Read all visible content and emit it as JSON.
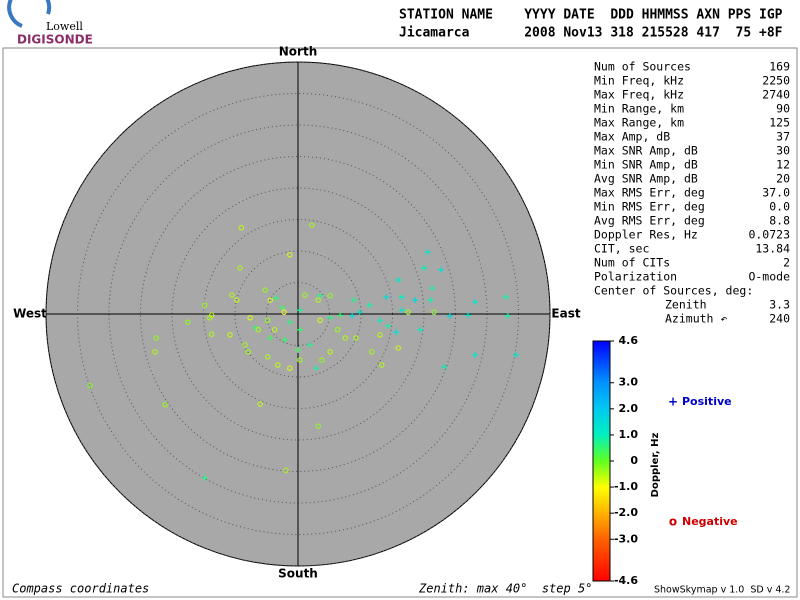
{
  "logo": {
    "top": "Lowell",
    "bottom": "DIGISONDE"
  },
  "header": {
    "columns": "STATION NAME    YYYY DATE  DDD HHMMSS AXN PPS IGP",
    "values": "Jicamarca       2008 Nov13 318 215528 417  75 +8F"
  },
  "stats": [
    {
      "label": "Num of Sources",
      "value": "169"
    },
    {
      "label": "Min Freq, kHz",
      "value": "2250"
    },
    {
      "label": "Max Freq, kHz",
      "value": "2740"
    },
    {
      "label": "Min Range, km",
      "value": "90"
    },
    {
      "label": "Max Range, km",
      "value": "125"
    },
    {
      "label": "Max Amp, dB",
      "value": "37"
    },
    {
      "label": "Max SNR Amp, dB",
      "value": "30"
    },
    {
      "label": "Min SNR Amp, dB",
      "value": "12"
    },
    {
      "label": "Avg SNR Amp, dB",
      "value": "20"
    },
    {
      "label": "Max RMS Err, deg",
      "value": "37.0"
    },
    {
      "label": "Min RMS Err, deg",
      "value": "0.0"
    },
    {
      "label": "Avg RMS Err, deg",
      "value": "8.8"
    },
    {
      "label": "Doppler Res, Hz",
      "value": "0.0723"
    },
    {
      "label": "CIT, sec",
      "value": "13.84"
    },
    {
      "label": "Num of CITs",
      "value": "2"
    },
    {
      "label": "Polarization",
      "value": "O-mode"
    }
  ],
  "center": {
    "label": "Center of Sources, deg:",
    "rows": [
      {
        "label": "Zenith",
        "value": "3.3"
      },
      {
        "label": "Azimuth ↶",
        "value": "240"
      }
    ]
  },
  "footer": {
    "left": "Compass coordinates",
    "zenith": "Zenith: max 40°  step 5°",
    "version": "ShowSkymap v 1.0  SD v 4.2"
  },
  "chart_data": {
    "type": "skymap",
    "directions": {
      "north": "North",
      "east": "East",
      "south": "South",
      "west": "West"
    },
    "rlim": [
      0,
      40
    ],
    "rticks": [
      5,
      10,
      15,
      20,
      25,
      30,
      35,
      40
    ],
    "colorbar": {
      "title": "Doppler, Hz",
      "clim": [
        -4.6,
        4.6
      ],
      "ticks": [
        4.6,
        {
          "value": 3,
          "label": "3.0"
        },
        {
          "value": 2,
          "label": "2.0"
        },
        {
          "value": 1,
          "label": "1.0"
        },
        0,
        {
          "value": -1,
          "label": "-1.0"
        },
        {
          "value": -2,
          "label": "-2.0"
        },
        {
          "value": -3,
          "label": "-3.0"
        },
        -4.6
      ]
    },
    "series": [
      {
        "name": "Positive",
        "marker": "+",
        "color": "#0000cc",
        "x": [
          20.6,
          22.7,
          20.0,
          15.9,
          21.3,
          14.0,
          16.5,
          18.6,
          21.0,
          28.1,
          33.0,
          8.9,
          9.8,
          6.7,
          8.6,
          5.1,
          16.5,
          24.1,
          27.0,
          33.3,
          19.4,
          15.6,
          14.3,
          11.4,
          -2.5,
          -1.3,
          0.3,
          1.9,
          0,
          -2.1,
          28.1,
          34.6,
          23.2,
          2.9,
          -4.4,
          -6.7,
          -14.8,
          0.3,
          -3.5,
          3.5,
          13.0
        ],
        "y": [
          9.8,
          7.0,
          7.3,
          5.4,
          4.1,
          2.7,
          2.7,
          2.2,
          2.2,
          1.9,
          2.7,
          2.2,
          0.3,
          -0.2,
          -0.3,
          -0.6,
          0.6,
          -0.3,
          -0.2,
          -0.3,
          -2.5,
          -2.9,
          -1.9,
          1.4,
          1.0,
          -1.3,
          -2.5,
          -4.9,
          -5.7,
          -4.1,
          -6.5,
          -6.5,
          -8.4,
          -8.6,
          -3.8,
          -2.2,
          -26.0,
          0.6,
          2.5,
          2.9,
          -1.0
        ],
        "doppler": [
          1.2,
          1.4,
          1.0,
          1.3,
          0.8,
          1.5,
          1.1,
          1.6,
          0.9,
          1.2,
          0.8,
          0.7,
          1.4,
          0.5,
          1.5,
          0.6,
          1.2,
          1.7,
          1.3,
          0.9,
          1.1,
          1.4,
          0.8,
          0.9,
          0.4,
          0.6,
          0.5,
          0.7,
          0.4,
          0.5,
          1.2,
          1.3,
          1.0,
          0.8,
          0.4,
          0.5,
          0.6,
          0.7,
          0.5,
          0.6,
          1.0
        ]
      },
      {
        "name": "Negative",
        "marker": "o",
        "color": "#cc0000",
        "x": [
          -9.0,
          2.2,
          -1.3,
          -9.2,
          -5.2,
          -4.4,
          -10.5,
          -9.7,
          -14.8,
          -13.7,
          -17.5,
          -13.7,
          -10.8,
          -8.4,
          -7.6,
          -6.3,
          -4.8,
          -3.7,
          -2.2,
          1.1,
          3.2,
          5.1,
          3.5,
          6.3,
          7.5,
          5.1,
          3.8,
          0.3,
          -1.3,
          -4.8,
          -3.2,
          -7.9,
          -22.5,
          -22.7,
          -21.1,
          -33.0,
          -6.0,
          3.2,
          -1.9,
          11.7,
          15.9,
          13.3,
          21.6,
          17.5,
          13.0,
          9.2,
          -14.0
        ],
        "y": [
          13.7,
          14.1,
          9.4,
          7.3,
          3.8,
          2.2,
          3.0,
          2.2,
          1.4,
          -0.2,
          -1.3,
          -3.2,
          -3.3,
          -4.9,
          -0.6,
          -2.5,
          -1.0,
          -2.5,
          0.3,
          3.0,
          2.2,
          2.9,
          -1.0,
          -2.5,
          -3.8,
          -6.0,
          -7.3,
          -7.3,
          -8.6,
          -6.8,
          -8.1,
          -6.0,
          -3.8,
          -6.0,
          -14.4,
          -11.4,
          -14.3,
          -17.8,
          -24.8,
          -6.0,
          -5.4,
          -8.1,
          0.3,
          0.3,
          -3.3,
          -3.8,
          -0.6
        ],
        "doppler": [
          -0.6,
          -0.4,
          -0.7,
          -0.5,
          -0.3,
          -0.8,
          -0.5,
          -0.6,
          -0.4,
          -0.7,
          -0.3,
          -0.5,
          -0.6,
          -0.4,
          -0.8,
          -0.5,
          -0.3,
          -0.6,
          -0.9,
          -0.4,
          -0.5,
          -0.3,
          -0.7,
          -0.4,
          -0.5,
          -0.6,
          -0.3,
          -0.4,
          -0.8,
          -0.5,
          -0.6,
          -0.4,
          -0.3,
          -0.5,
          -0.4,
          -0.2,
          -0.6,
          -0.3,
          -0.5,
          -0.4,
          -0.7,
          -0.5,
          -0.3,
          -0.4,
          -0.6,
          -0.5,
          -0.4
        ]
      }
    ]
  }
}
